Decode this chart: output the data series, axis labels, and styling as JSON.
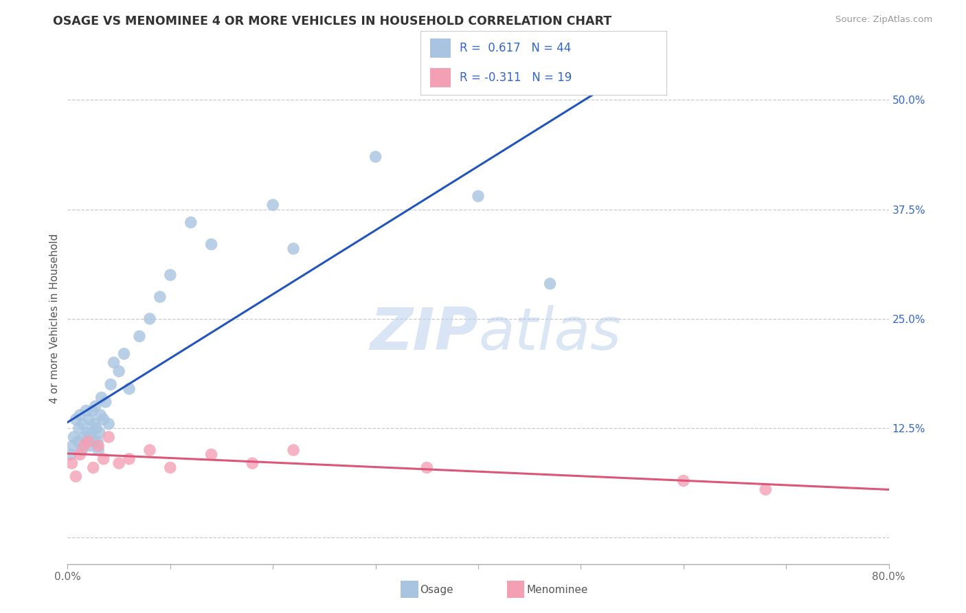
{
  "title": "OSAGE VS MENOMINEE 4 OR MORE VEHICLES IN HOUSEHOLD CORRELATION CHART",
  "source_text": "Source: ZipAtlas.com",
  "ylabel": "4 or more Vehicles in Household",
  "xlim": [
    0.0,
    80.0
  ],
  "ylim": [
    -3.0,
    53.0
  ],
  "xticks": [
    0.0,
    10.0,
    20.0,
    30.0,
    40.0,
    50.0,
    60.0,
    70.0,
    80.0
  ],
  "xtick_labels": [
    "0.0%",
    "",
    "",
    "",
    "",
    "",
    "",
    "",
    "80.0%"
  ],
  "yticks": [
    0.0,
    12.5,
    25.0,
    37.5,
    50.0
  ],
  "ytick_labels": [
    "",
    "12.5%",
    "25.0%",
    "37.5%",
    "50.0%"
  ],
  "grid_color": "#c8c8d0",
  "background_color": "#ffffff",
  "osage_color": "#a8c4e0",
  "menominee_color": "#f4a0b4",
  "osage_line_color": "#2255bb",
  "menominee_line_color": "#dd5577",
  "osage_x": [
    0.3,
    0.5,
    0.6,
    0.8,
    1.0,
    1.1,
    1.2,
    1.4,
    1.5,
    1.6,
    1.8,
    2.0,
    2.1,
    2.2,
    2.3,
    2.4,
    2.5,
    2.6,
    2.7,
    2.8,
    2.9,
    3.0,
    3.1,
    3.2,
    3.3,
    3.5,
    3.7,
    4.0,
    4.2,
    4.5,
    5.0,
    5.5,
    6.0,
    7.0,
    8.0,
    9.0,
    10.0,
    12.0,
    14.0,
    20.0,
    22.0,
    30.0,
    40.0,
    47.0
  ],
  "osage_y": [
    9.5,
    10.5,
    11.5,
    13.5,
    11.0,
    12.5,
    14.0,
    10.0,
    13.0,
    11.5,
    14.5,
    12.0,
    13.5,
    10.5,
    12.0,
    14.5,
    11.0,
    13.0,
    15.0,
    12.5,
    11.0,
    10.0,
    12.0,
    14.0,
    16.0,
    13.5,
    15.5,
    13.0,
    17.5,
    20.0,
    19.0,
    21.0,
    17.0,
    23.0,
    25.0,
    27.5,
    30.0,
    36.0,
    33.5,
    38.0,
    33.0,
    43.5,
    39.0,
    29.0
  ],
  "menominee_x": [
    0.4,
    0.8,
    1.2,
    1.6,
    2.0,
    2.5,
    3.0,
    3.5,
    4.0,
    5.0,
    6.0,
    8.0,
    10.0,
    14.0,
    18.0,
    22.0,
    35.0,
    60.0,
    68.0
  ],
  "menominee_y": [
    8.5,
    7.0,
    9.5,
    10.5,
    11.0,
    8.0,
    10.5,
    9.0,
    11.5,
    8.5,
    9.0,
    10.0,
    8.0,
    9.5,
    8.5,
    10.0,
    8.0,
    6.5,
    5.5
  ]
}
